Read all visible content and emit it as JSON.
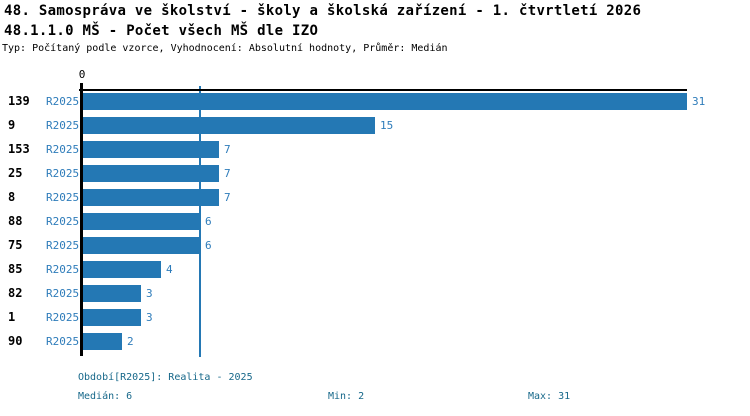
{
  "title": {
    "line1": "48. Samospráva ve školství - školy a školská zařízení - 1. čtvrtletí 2026",
    "line2": "48.1.1.0 MŠ - Počet všech MŠ dle IZO"
  },
  "subtitle": "Typ: Počítaný podle vzorce, Vyhodnocení: Absolutní hodnoty, Průměr: Medián",
  "chart_data": {
    "type": "bar",
    "orientation": "horizontal",
    "x_axis": {
      "position": "top",
      "origin_tick_label": "0",
      "xlim": [
        0,
        31
      ]
    },
    "categories": [
      "139",
      "9",
      "153",
      "25",
      "8",
      "88",
      "75",
      "85",
      "82",
      "1",
      "90"
    ],
    "series": [
      {
        "name": "R2025",
        "values": [
          31,
          15,
          7,
          7,
          7,
          6,
          6,
          4,
          3,
          3,
          2
        ]
      }
    ],
    "value_labels_shown": true,
    "median_line_value": 6,
    "colors": {
      "bar": "#2478b4",
      "series_label": "#2e7cba",
      "value_label": "#2e7cba",
      "median_line": "#2478b4",
      "axis": "#000000",
      "footer_text": "#17688a"
    }
  },
  "footer": {
    "period_label": "Období[R2025]: Realita - 2025",
    "median_label": "Medián: 6",
    "min_label": "Min: 2",
    "max_label": "Max: 31"
  }
}
